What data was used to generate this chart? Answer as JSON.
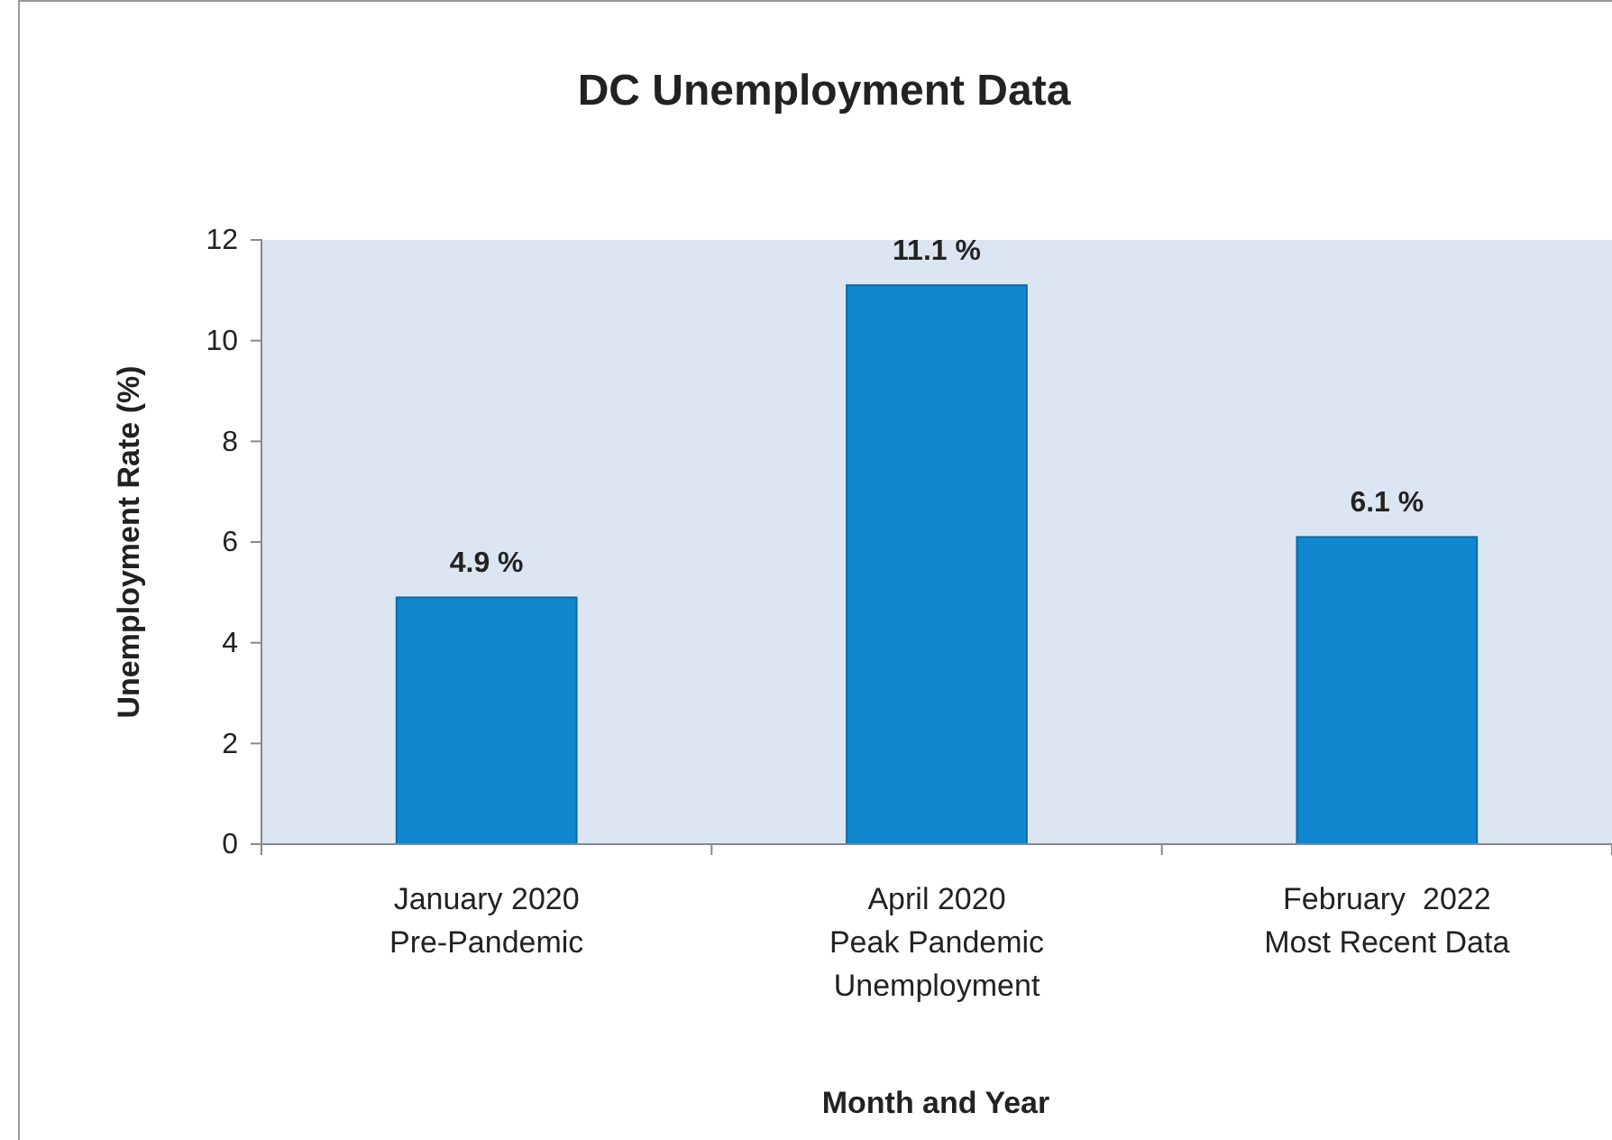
{
  "chart_data": {
    "type": "bar",
    "title": "DC Unemployment Data",
    "xlabel": "Month and Year",
    "ylabel": "Unemployment Rate (%)",
    "categories": [
      "January 2020\nPre-Pandemic",
      "April 2020\nPeak Pandemic\nUnemployment",
      "February  2022\nMost Recent Data"
    ],
    "values": [
      4.9,
      11.1,
      6.1
    ],
    "color": "#0f87cf",
    "value_labels": [
      "4.9 %",
      "11.1 %",
      "6.1 %"
    ],
    "ylim": [
      0,
      12
    ],
    "yticks": [
      0,
      2,
      4,
      6,
      8,
      10,
      12
    ],
    "grid": false,
    "legend": false
  }
}
